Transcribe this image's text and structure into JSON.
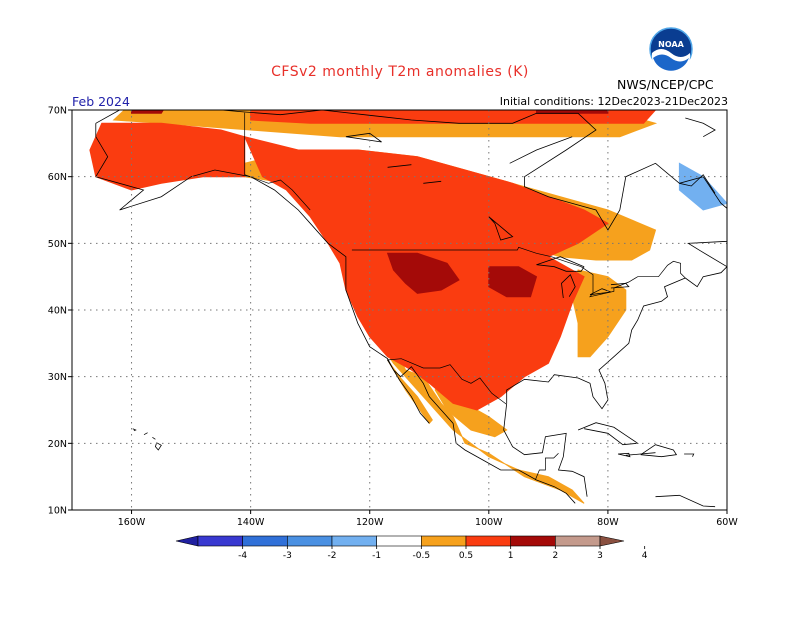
{
  "title": "CFSv2 monthly T2m anomalies (K)",
  "period": "Feb 2024",
  "initial_conditions": "Initial conditions: 12Dec2023-21Dec2023",
  "agency": "NWS/NCEP/CPC",
  "logo_text": "NOAA",
  "map": {
    "lat_range": [
      10,
      70
    ],
    "lon_range": [
      -170,
      -60
    ],
    "lat_ticks": [
      "10N",
      "20N",
      "30N",
      "40N",
      "50N",
      "60N",
      "70N"
    ],
    "lon_ticks": [
      "160W",
      "140W",
      "120W",
      "100W",
      "80W",
      "60W"
    ]
  },
  "anomaly_fields": [
    {
      "level": "0.5-1",
      "color": "#f6a11d",
      "regions": [
        {
          "name": "Alaska North Slope",
          "lonlat": [
            [
              -160,
              71
            ],
            [
              -150,
              71
            ],
            [
              -140,
              70
            ],
            [
              -128,
              70
            ],
            [
              -120,
              70.5
            ],
            [
              -108,
              70
            ],
            [
              -100,
              70
            ],
            [
              -88,
              70
            ],
            [
              -80,
              70
            ],
            [
              -72,
              68
            ],
            [
              -78,
              66
            ],
            [
              -90,
              66
            ],
            [
              -108,
              66
            ],
            [
              -125,
              66
            ],
            [
              -140,
              67
            ],
            [
              -155,
              68
            ],
            [
              -163,
              68.5
            ]
          ]
        },
        {
          "name": "Northwest Canada",
          "lonlat": [
            [
              -141,
              60
            ],
            [
              -134,
              59
            ],
            [
              -128,
              56
            ],
            [
              -123,
              54
            ],
            [
              -118,
              53
            ],
            [
              -112,
              52
            ],
            [
              -104,
              51
            ],
            [
              -98,
              50
            ],
            [
              -92,
              49
            ],
            [
              -88,
              48
            ],
            [
              -82,
              47.5
            ],
            [
              -76,
              47.5
            ],
            [
              -73,
              49
            ],
            [
              -72,
              52
            ],
            [
              -80,
              55
            ],
            [
              -88,
              57
            ],
            [
              -96,
              59
            ],
            [
              -104,
              61
            ],
            [
              -112,
              63
            ],
            [
              -122,
              64
            ],
            [
              -132,
              64
            ],
            [
              -141,
              62
            ]
          ]
        },
        {
          "name": "Western US",
          "lonlat": [
            [
              -125,
              48
            ],
            [
              -122,
              42
            ],
            [
              -119,
              36
            ],
            [
              -116,
              32
            ],
            [
              -112,
              28
            ],
            [
              -106,
              22
            ],
            [
              -100,
              18
            ],
            [
              -95,
              16
            ],
            [
              -90,
              15
            ],
            [
              -86,
              13
            ],
            [
              -84,
              11
            ],
            [
              -88,
              13
            ],
            [
              -94,
              15
            ],
            [
              -100,
              18.5
            ],
            [
              -104,
              20
            ],
            [
              -106,
              24
            ],
            [
              -108,
              26
            ],
            [
              -111,
              30
            ],
            [
              -114,
              31
            ],
            [
              -115,
              33
            ],
            [
              -118,
              35
            ],
            [
              -120,
              38
            ],
            [
              -123,
              41
            ],
            [
              -124,
              46
            ]
          ]
        },
        {
          "name": "Baja California",
          "lonlat": [
            [
              -117,
              32.5
            ],
            [
              -114,
              28
            ],
            [
              -110,
              23
            ],
            [
              -109.5,
              23.5
            ],
            [
              -112,
              27
            ],
            [
              -115,
              30
            ]
          ]
        },
        {
          "name": "Eastern Great Lakes",
          "lonlat": [
            [
              -85,
              46
            ],
            [
              -80,
              45
            ],
            [
              -77,
              43
            ],
            [
              -77,
              40
            ],
            [
              -80,
              36
            ],
            [
              -83,
              33
            ],
            [
              -85,
              33
            ],
            [
              -85,
              38
            ],
            [
              -86,
              42
            ]
          ]
        },
        {
          "name": "Mexico interior",
          "lonlat": [
            [
              -108,
              30
            ],
            [
              -104,
              26
            ],
            [
              -100,
              24
            ],
            [
              -97,
              22
            ],
            [
              -99,
              21
            ],
            [
              -103,
              22
            ],
            [
              -107,
              25
            ],
            [
              -109,
              28
            ]
          ]
        }
      ]
    },
    {
      "level": "1-2",
      "color": "#fa3c10",
      "regions": [
        {
          "name": "Alaska interior",
          "lonlat": [
            [
              -165,
              68
            ],
            [
              -155,
              68
            ],
            [
              -145,
              67
            ],
            [
              -141,
              66
            ],
            [
              -141,
              60
            ],
            [
              -148,
              60
            ],
            [
              -155,
              59
            ],
            [
              -160,
              58
            ],
            [
              -166,
              60
            ],
            [
              -167,
              64
            ]
          ]
        },
        {
          "name": "Arctic coast",
          "lonlat": [
            [
              -140,
              70.5
            ],
            [
              -110,
              70.5
            ],
            [
              -88,
              70.5
            ],
            [
              -72,
              70
            ],
            [
              -74,
              68
            ],
            [
              -86,
              68
            ],
            [
              -100,
              68
            ],
            [
              -115,
              68
            ],
            [
              -130,
              68
            ],
            [
              -140,
              68.5
            ]
          ]
        },
        {
          "name": "Central North America",
          "lonlat": [
            [
              -141,
              66
            ],
            [
              -132,
              64
            ],
            [
              -122,
              64
            ],
            [
              -112,
              63
            ],
            [
              -104,
              61
            ],
            [
              -96,
              59
            ],
            [
              -90,
              57
            ],
            [
              -84,
              55
            ],
            [
              -80,
              53
            ],
            [
              -85,
              50
            ],
            [
              -90,
              48
            ],
            [
              -84,
              45
            ],
            [
              -86,
              41
            ],
            [
              -88,
              36
            ],
            [
              -90,
              32
            ],
            [
              -94,
              30
            ],
            [
              -98,
              27
            ],
            [
              -102,
              25
            ],
            [
              -106,
              26
            ],
            [
              -110,
              29
            ],
            [
              -113,
              31
            ],
            [
              -117,
              33
            ],
            [
              -120,
              36
            ],
            [
              -122,
              39
            ],
            [
              -124,
              43
            ],
            [
              -125,
              47
            ],
            [
              -127,
              50
            ],
            [
              -130,
              54
            ],
            [
              -134,
              58
            ],
            [
              -138,
              60
            ]
          ]
        }
      ]
    },
    {
      "level": "2-3",
      "color": "#a40a08",
      "regions": [
        {
          "name": "Montana–Wyoming",
          "lonlat": [
            [
              -117,
              48.5
            ],
            [
              -112,
              48.5
            ],
            [
              -107,
              47
            ],
            [
              -105,
              44.5
            ],
            [
              -108,
              43
            ],
            [
              -112,
              42.5
            ],
            [
              -114,
              44
            ],
            [
              -116,
              46
            ]
          ]
        },
        {
          "name": "Upper Midwest",
          "lonlat": [
            [
              -100,
              46.5
            ],
            [
              -95,
              46.5
            ],
            [
              -92,
              45
            ],
            [
              -93,
              42
            ],
            [
              -97,
              42
            ],
            [
              -100,
              43.5
            ]
          ]
        },
        {
          "name": "Alaska North coast",
          "lonlat": [
            [
              -160,
              71
            ],
            [
              -154,
              71
            ],
            [
              -155,
              69.5
            ],
            [
              -160,
              69.5
            ]
          ]
        },
        {
          "name": "Canadian Arctic coast",
          "lonlat": [
            [
              -92,
              71
            ],
            [
              -80,
              71
            ],
            [
              -80,
              69.5
            ],
            [
              -92,
              69.5
            ]
          ]
        }
      ]
    },
    {
      "level": "-1 to -0.5",
      "color": "#72b0f0",
      "regions": [
        {
          "name": "Labrador",
          "lonlat": [
            [
              -68,
              62
            ],
            [
              -64,
              60
            ],
            [
              -60,
              56
            ],
            [
              -64,
              55
            ],
            [
              -68,
              58
            ]
          ]
        }
      ]
    }
  ],
  "legend": {
    "labels": [
      "-4",
      "-3",
      "-2",
      "-1",
      "-0.5",
      "0.5",
      "1",
      "2",
      "3",
      "4"
    ],
    "bins": [
      {
        "color": "#2020a0"
      },
      {
        "color": "#3838d0"
      },
      {
        "color": "#3070d8"
      },
      {
        "color": "#4a90e2"
      },
      {
        "color": "#72b0f0"
      },
      {
        "color": "#ffffff"
      },
      {
        "color": "#f6a11d"
      },
      {
        "color": "#fa3c10"
      },
      {
        "color": "#a40a08"
      },
      {
        "color": "#c49a8c"
      },
      {
        "color": "#8a5040"
      }
    ]
  }
}
